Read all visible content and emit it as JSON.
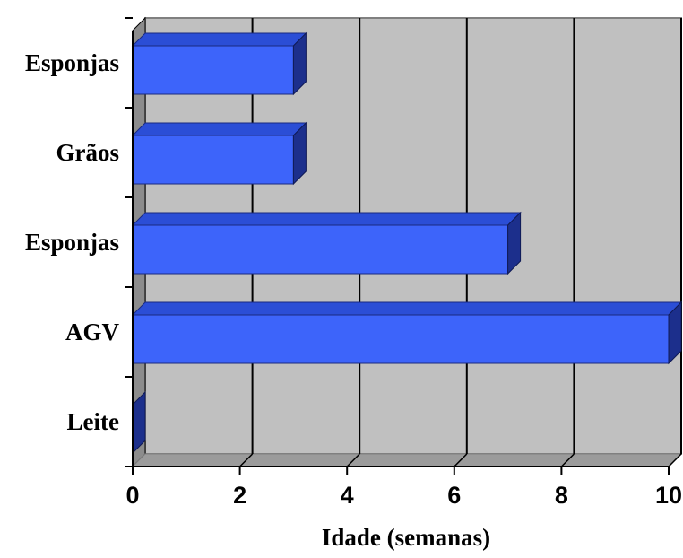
{
  "chart_data": {
    "type": "bar",
    "orientation": "horizontal",
    "style": "3d",
    "categories": [
      "Leite",
      "AGV",
      "Esponjas",
      "Grãos",
      "Esponjas"
    ],
    "values": [
      0,
      10,
      7,
      3,
      3
    ],
    "xlabel": "Idade (semanas)",
    "ylabel": "",
    "xlim": [
      0,
      10
    ],
    "xticks": [
      "0",
      "2",
      "4",
      "6",
      "8",
      "10"
    ],
    "grid": "vertical",
    "legend": "none",
    "colors": {
      "bar_front": "#3d64fa",
      "bar_top": "#2b4ed6",
      "bar_side": "#1c2f8c",
      "plot_back": "#c0c0c0",
      "plot_floor": "#9b9b9b",
      "gridline": "#000000"
    }
  }
}
